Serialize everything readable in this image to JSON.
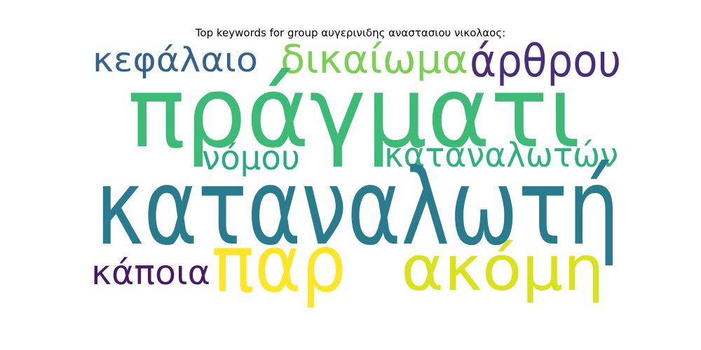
{
  "title": "Top keywords for group αυγερινιδης αναστασιου νικολαος:",
  "words": [
    {
      "text": "κεφάλαιο",
      "color": "#33638d"
    },
    {
      "text": "δικαίωμα",
      "color": "#7ad151"
    },
    {
      "text": "άρθρου",
      "color": "#472d7b"
    },
    {
      "text": "πράγματι",
      "color": "#3bbb75"
    },
    {
      "text": "νόμου",
      "color": "#25ab82"
    },
    {
      "text": "καταναλωτών",
      "color": "#2db27d"
    },
    {
      "text": "καταναλωτή",
      "color": "#287c8e"
    },
    {
      "text": "παρ",
      "color": "#fde725"
    },
    {
      "text": "ακόμη",
      "color": "#dae319"
    },
    {
      "text": "κάποια",
      "color": "#48186a"
    }
  ]
}
